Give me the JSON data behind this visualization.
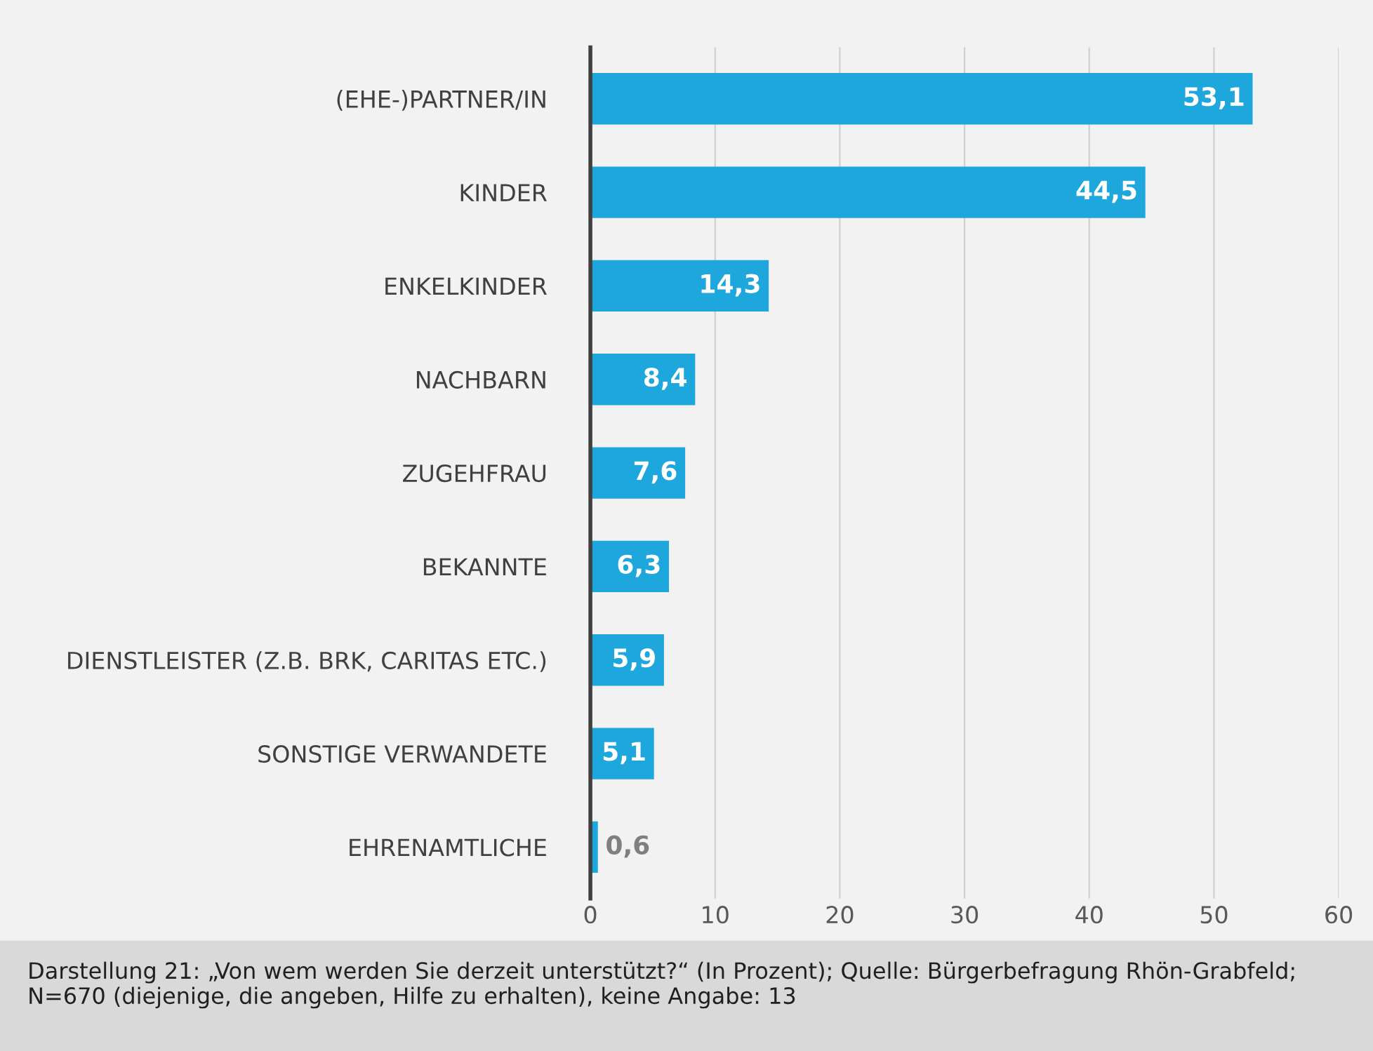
{
  "chart_data": {
    "type": "bar",
    "orientation": "horizontal",
    "categories": [
      "(EHE-)PARTNER/IN",
      "KINDER",
      "ENKELKINDER",
      "NACHBARN",
      "ZUGEHFRAU",
      "BEKANNTE",
      "DIENSTLEISTER (Z.B. BRK, CARITAS ETC.)",
      "SONSTIGE VERWANDETE",
      "EHRENAMTLICHE"
    ],
    "values": [
      53.1,
      44.5,
      14.3,
      8.4,
      7.6,
      6.3,
      5.9,
      5.1,
      0.6
    ],
    "value_labels": [
      "53,1",
      "44,5",
      "14,3",
      "8,4",
      "7,6",
      "6,3",
      "5,9",
      "5,1",
      "0,6"
    ],
    "color": "#1ea7dd",
    "xlim": [
      0,
      60
    ],
    "xticks": [
      0,
      10,
      20,
      30,
      40,
      50,
      60
    ],
    "grid": "x",
    "legend": false,
    "annotations": [
      "Darstellung 21: „Von wem werden Sie derzeit unterstützt?“ (In Prozent); Quelle: Bürgerbefragung Rhön-Grabfeld; N=670 (diejenige, die angeben, Hilfe zu erhalten), keine Angabe: 13"
    ]
  }
}
